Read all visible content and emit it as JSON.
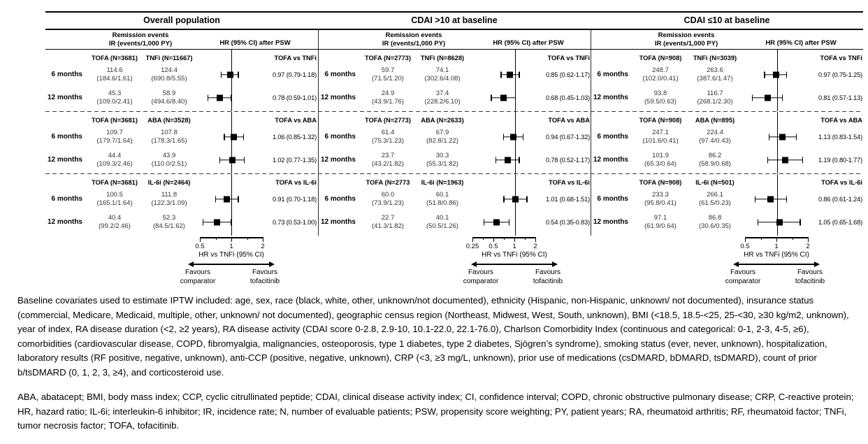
{
  "meta": {
    "background": "#ffffff",
    "ink": "#000000",
    "value_text": "#333333"
  },
  "chart_data": {
    "type": "scatter",
    "variant": "forest-plot",
    "x_scale": "log",
    "shared": {
      "remission_header": [
        "Remission events",
        "IR (events/1,000 PY)"
      ],
      "hr_header": "HR (95% CI) after PSW",
      "axis_label": "HR vs TNFi (95% CI)",
      "favours_left": [
        "Favours",
        "comparator"
      ],
      "favours_right": [
        "Favours",
        "tofacitinib"
      ]
    },
    "panels": [
      {
        "title": "Overall population",
        "axis": {
          "min": 0.5,
          "max": 2,
          "ticks": [
            "0.5",
            "1",
            "2"
          ]
        },
        "blocks": [
          {
            "tofa_header": "TOFA (N=3681)",
            "comp_header": "TNFi (N=11667)",
            "vs_label": "TOFA vs TNFi",
            "rows": [
              {
                "label": "6 months",
                "tofa": [
                  "114.6",
                  "(184.6/1.61)"
                ],
                "comp": [
                  "124.4",
                  "(690.8/5.55)"
                ],
                "hr": 0.97,
                "ci": [
                  0.79,
                  1.18
                ],
                "hr_text": "0.97 (0.79-1.18)"
              },
              {
                "label": "12 months",
                "tofa": [
                  "45.3",
                  "(109.0/2.41)"
                ],
                "comp": [
                  "58.9",
                  "(494.6/8.40)"
                ],
                "hr": 0.78,
                "ci": [
                  0.59,
                  1.01
                ],
                "hr_text": "0.78 (0.59-1.01)"
              }
            ]
          },
          {
            "tofa_header": "TOFA (N=3681)",
            "comp_header": "ABA (N=3528)",
            "vs_label": "TOFA vs ABA",
            "rows": [
              {
                "label": "6 months",
                "tofa": [
                  "109.7",
                  "(179.7/1.64)"
                ],
                "comp": [
                  "107.8",
                  "(178.3/1.65)"
                ],
                "hr": 1.06,
                "ci": [
                  0.85,
                  1.32
                ],
                "hr_text": "1.06 (0.85-1.32)"
              },
              {
                "label": "12 months",
                "tofa": [
                  "44.4",
                  "(109.3/2.46)"
                ],
                "comp": [
                  "43.9",
                  "(110.0/2.51)"
                ],
                "hr": 1.02,
                "ci": [
                  0.77,
                  1.35
                ],
                "hr_text": "1.02 (0.77-1.35)"
              }
            ]
          },
          {
            "tofa_header": "TOFA (N=3681)",
            "comp_header": "IL-6i (N=2464)",
            "vs_label": "TOFA vs IL-6i",
            "rows": [
              {
                "label": "6 months",
                "tofa": [
                  "100.5",
                  "(165.1/1.64)"
                ],
                "comp": [
                  "111.8",
                  "(122.3/1.09)"
                ],
                "hr": 0.91,
                "ci": [
                  0.7,
                  1.18
                ],
                "hr_text": "0.91 (0.70-1.18)"
              },
              {
                "label": "12 months",
                "tofa": [
                  "40.4",
                  "(99.2/2.46)"
                ],
                "comp": [
                  "52.3",
                  "(84.5/1.62)"
                ],
                "hr": 0.73,
                "ci": [
                  0.53,
                  1.0
                ],
                "hr_text": "0.73 (0.53-1.00)"
              }
            ]
          }
        ]
      },
      {
        "title": "CDAI >10 at baseline",
        "axis": {
          "min": 0.25,
          "max": 2,
          "ticks": [
            "0.25",
            "0.5",
            "1",
            "2"
          ]
        },
        "blocks": [
          {
            "tofa_header": "TOFA (N=2773)",
            "comp_header": "TNFi (N=8628)",
            "vs_label": "TOFA vs TNFi",
            "rows": [
              {
                "label": "6 months",
                "tofa": [
                  "59.7",
                  "(71.5/1.20)"
                ],
                "comp": [
                  "74.1",
                  "(302.6/4.08)"
                ],
                "hr": 0.85,
                "ci": [
                  0.62,
                  1.17
                ],
                "hr_text": "0.85 (0.62-1.17)"
              },
              {
                "label": "12 months",
                "tofa": [
                  "24.9",
                  "(43.9/1.76)"
                ],
                "comp": [
                  "37.4",
                  "(228.2/6.10)"
                ],
                "hr": 0.68,
                "ci": [
                  0.45,
                  1.03
                ],
                "hr_text": "0.68 (0.45-1.03)"
              }
            ]
          },
          {
            "tofa_header": "TOFA (N=2773)",
            "comp_header": "ABA (N=2633)",
            "vs_label": "TOFA vs ABA",
            "rows": [
              {
                "label": "6 months",
                "tofa": [
                  "61.4",
                  "(75.3/1.23)"
                ],
                "comp": [
                  "67.9",
                  "(82.8/1.22)"
                ],
                "hr": 0.94,
                "ci": [
                  0.67,
                  1.32
                ],
                "hr_text": "0.94 (0.67-1.32)"
              },
              {
                "label": "12 months",
                "tofa": [
                  "23.7",
                  "(43.2/1.82)"
                ],
                "comp": [
                  "30.3",
                  "(55.3/1.82)"
                ],
                "hr": 0.78,
                "ci": [
                  0.52,
                  1.17
                ],
                "hr_text": "0.78 (0.52-1.17)"
              }
            ]
          },
          {
            "tofa_header": "TOFA (N=2773",
            "comp_header": "IL-6i (N=1963)",
            "vs_label": "TOFA vs IL-6i",
            "rows": [
              {
                "label": "6 months",
                "tofa": [
                  "60.0",
                  "(73.9/1.23)"
                ],
                "comp": [
                  "60.1",
                  "(51.8/0.86)"
                ],
                "hr": 1.01,
                "ci": [
                  0.68,
                  1.51
                ],
                "hr_text": "1.01 (0.68-1.51)"
              },
              {
                "label": "12 months",
                "tofa": [
                  "22.7",
                  "(41.3/1.82)"
                ],
                "comp": [
                  "40.1",
                  "(50.5/1.26)"
                ],
                "hr": 0.54,
                "ci": [
                  0.35,
                  0.83
                ],
                "hr_text": "0.54 (0.35-0.83)"
              }
            ]
          }
        ]
      },
      {
        "title": "CDAI ≤10 at baseline",
        "axis": {
          "min": 0.5,
          "max": 2,
          "ticks": [
            "0.5",
            "1",
            "2"
          ]
        },
        "blocks": [
          {
            "tofa_header": "TOFA (N=908)",
            "comp_header": "TNFi (N=3039)",
            "vs_label": "TOFA vs TNFi",
            "rows": [
              {
                "label": "6 months",
                "tofa": [
                  "248.7",
                  "(102.0/0.41)"
                ],
                "comp": [
                  "263.6",
                  "(387.6/1.47)"
                ],
                "hr": 0.97,
                "ci": [
                  0.75,
                  1.25
                ],
                "hr_text": "0.97 (0.75-1.25)"
              },
              {
                "label": "12 months",
                "tofa": [
                  "93.8",
                  "(59.5/0.63)"
                ],
                "comp": [
                  "116.7",
                  "(268.1/2.30)"
                ],
                "hr": 0.81,
                "ci": [
                  0.57,
                  1.13
                ],
                "hr_text": "0.81 (0.57-1.13)"
              }
            ]
          },
          {
            "tofa_header": "TOFA (N=908)",
            "comp_header": "ABA (N=895)",
            "vs_label": "TOFA vs ABA",
            "rows": [
              {
                "label": "6 months",
                "tofa": [
                  "247.1",
                  "(101.6/0.41)"
                ],
                "comp": [
                  "224.4",
                  "(97.4/0.43)"
                ],
                "hr": 1.13,
                "ci": [
                  0.83,
                  1.54
                ],
                "hr_text": "1.13 (0.83-1.54)"
              },
              {
                "label": "12 months",
                "tofa": [
                  "101.9",
                  "(65.3/0.64)"
                ],
                "comp": [
                  "86.2",
                  "(58.9/0.68)"
                ],
                "hr": 1.19,
                "ci": [
                  0.8,
                  1.77
                ],
                "hr_text": "1.19 (0.80-1.77)"
              }
            ]
          },
          {
            "tofa_header": "TOFA (N=908)",
            "comp_header": "IL-6i (N=501)",
            "vs_label": "TOFA vs IL-6i",
            "rows": [
              {
                "label": "6 months",
                "tofa": [
                  "233.3",
                  "(95.8/0.41)"
                ],
                "comp": [
                  "266.1",
                  "(61.5/0.23)"
                ],
                "hr": 0.86,
                "ci": [
                  0.61,
                  1.24
                ],
                "hr_text": "0.86 (0.61-1.24)"
              },
              {
                "label": "12 months",
                "tofa": [
                  "97.1",
                  "(61.9/0.64)"
                ],
                "comp": [
                  "86.8",
                  "(30.6/0.35)"
                ],
                "hr": 1.05,
                "ci": [
                  0.65,
                  1.68
                ],
                "hr_text": "1.05 (0.65-1.68)"
              }
            ]
          }
        ]
      }
    ]
  },
  "caption": {
    "para1": "Baseline covariates used to estimate IPTW included: age, sex, race (black, white, other, unknown/not documented), ethnicity (Hispanic, non-Hispanic, unknown/ not documented), insurance status (commercial, Medicare, Medicaid, multiple, other, unknown/ not documented), geographic census region (Northeast, Midwest, West, South, unknown), BMI (<18.5, 18.5-<25, 25-<30, ≥30 kg/m2, unknown), year of index, RA disease duration (<2, ≥2 years), RA disease activity (CDAI score 0-2.8, 2.9-10, 10.1-22.0, 22.1-76.0), Charlson Comorbidity Index (continuous and categorical: 0-1, 2-3, 4-5, ≥6), comorbidities (cardiovascular disease, COPD, fibromyalgia, malignancies, osteoporosis, type 1 diabetes, type 2 diabetes, Sjögren’s syndrome), smoking status (ever, never, unknown), hospitalization, laboratory results (RF positive, negative, unknown), anti-CCP (positive, negative, unknown), CRP (<3, ≥3 mg/L, unknown), prior use of medications (csDMARD, bDMARD, tsDMARD), count of prior b/tsDMARD (0, 1, 2, 3, ≥4), and corticosteroid use.",
    "para2": "ABA, abatacept; BMI, body mass index; CCP, cyclic citrullinated peptide; CDAI, clinical disease activity index; CI, confidence interval; COPD, chronic obstructive pulmonary disease; CRP, C-reactive protein; HR, hazard ratio; IL-6i; interleukin-6 inhibitor; IR, incidence rate; N, number of evaluable patients; PSW, propensity score weighting; PY, patient years; RA, rheumatoid arthritis; RF, rheumatoid factor; TNFi, tumor necrosis factor; TOFA, tofacitinib."
  }
}
